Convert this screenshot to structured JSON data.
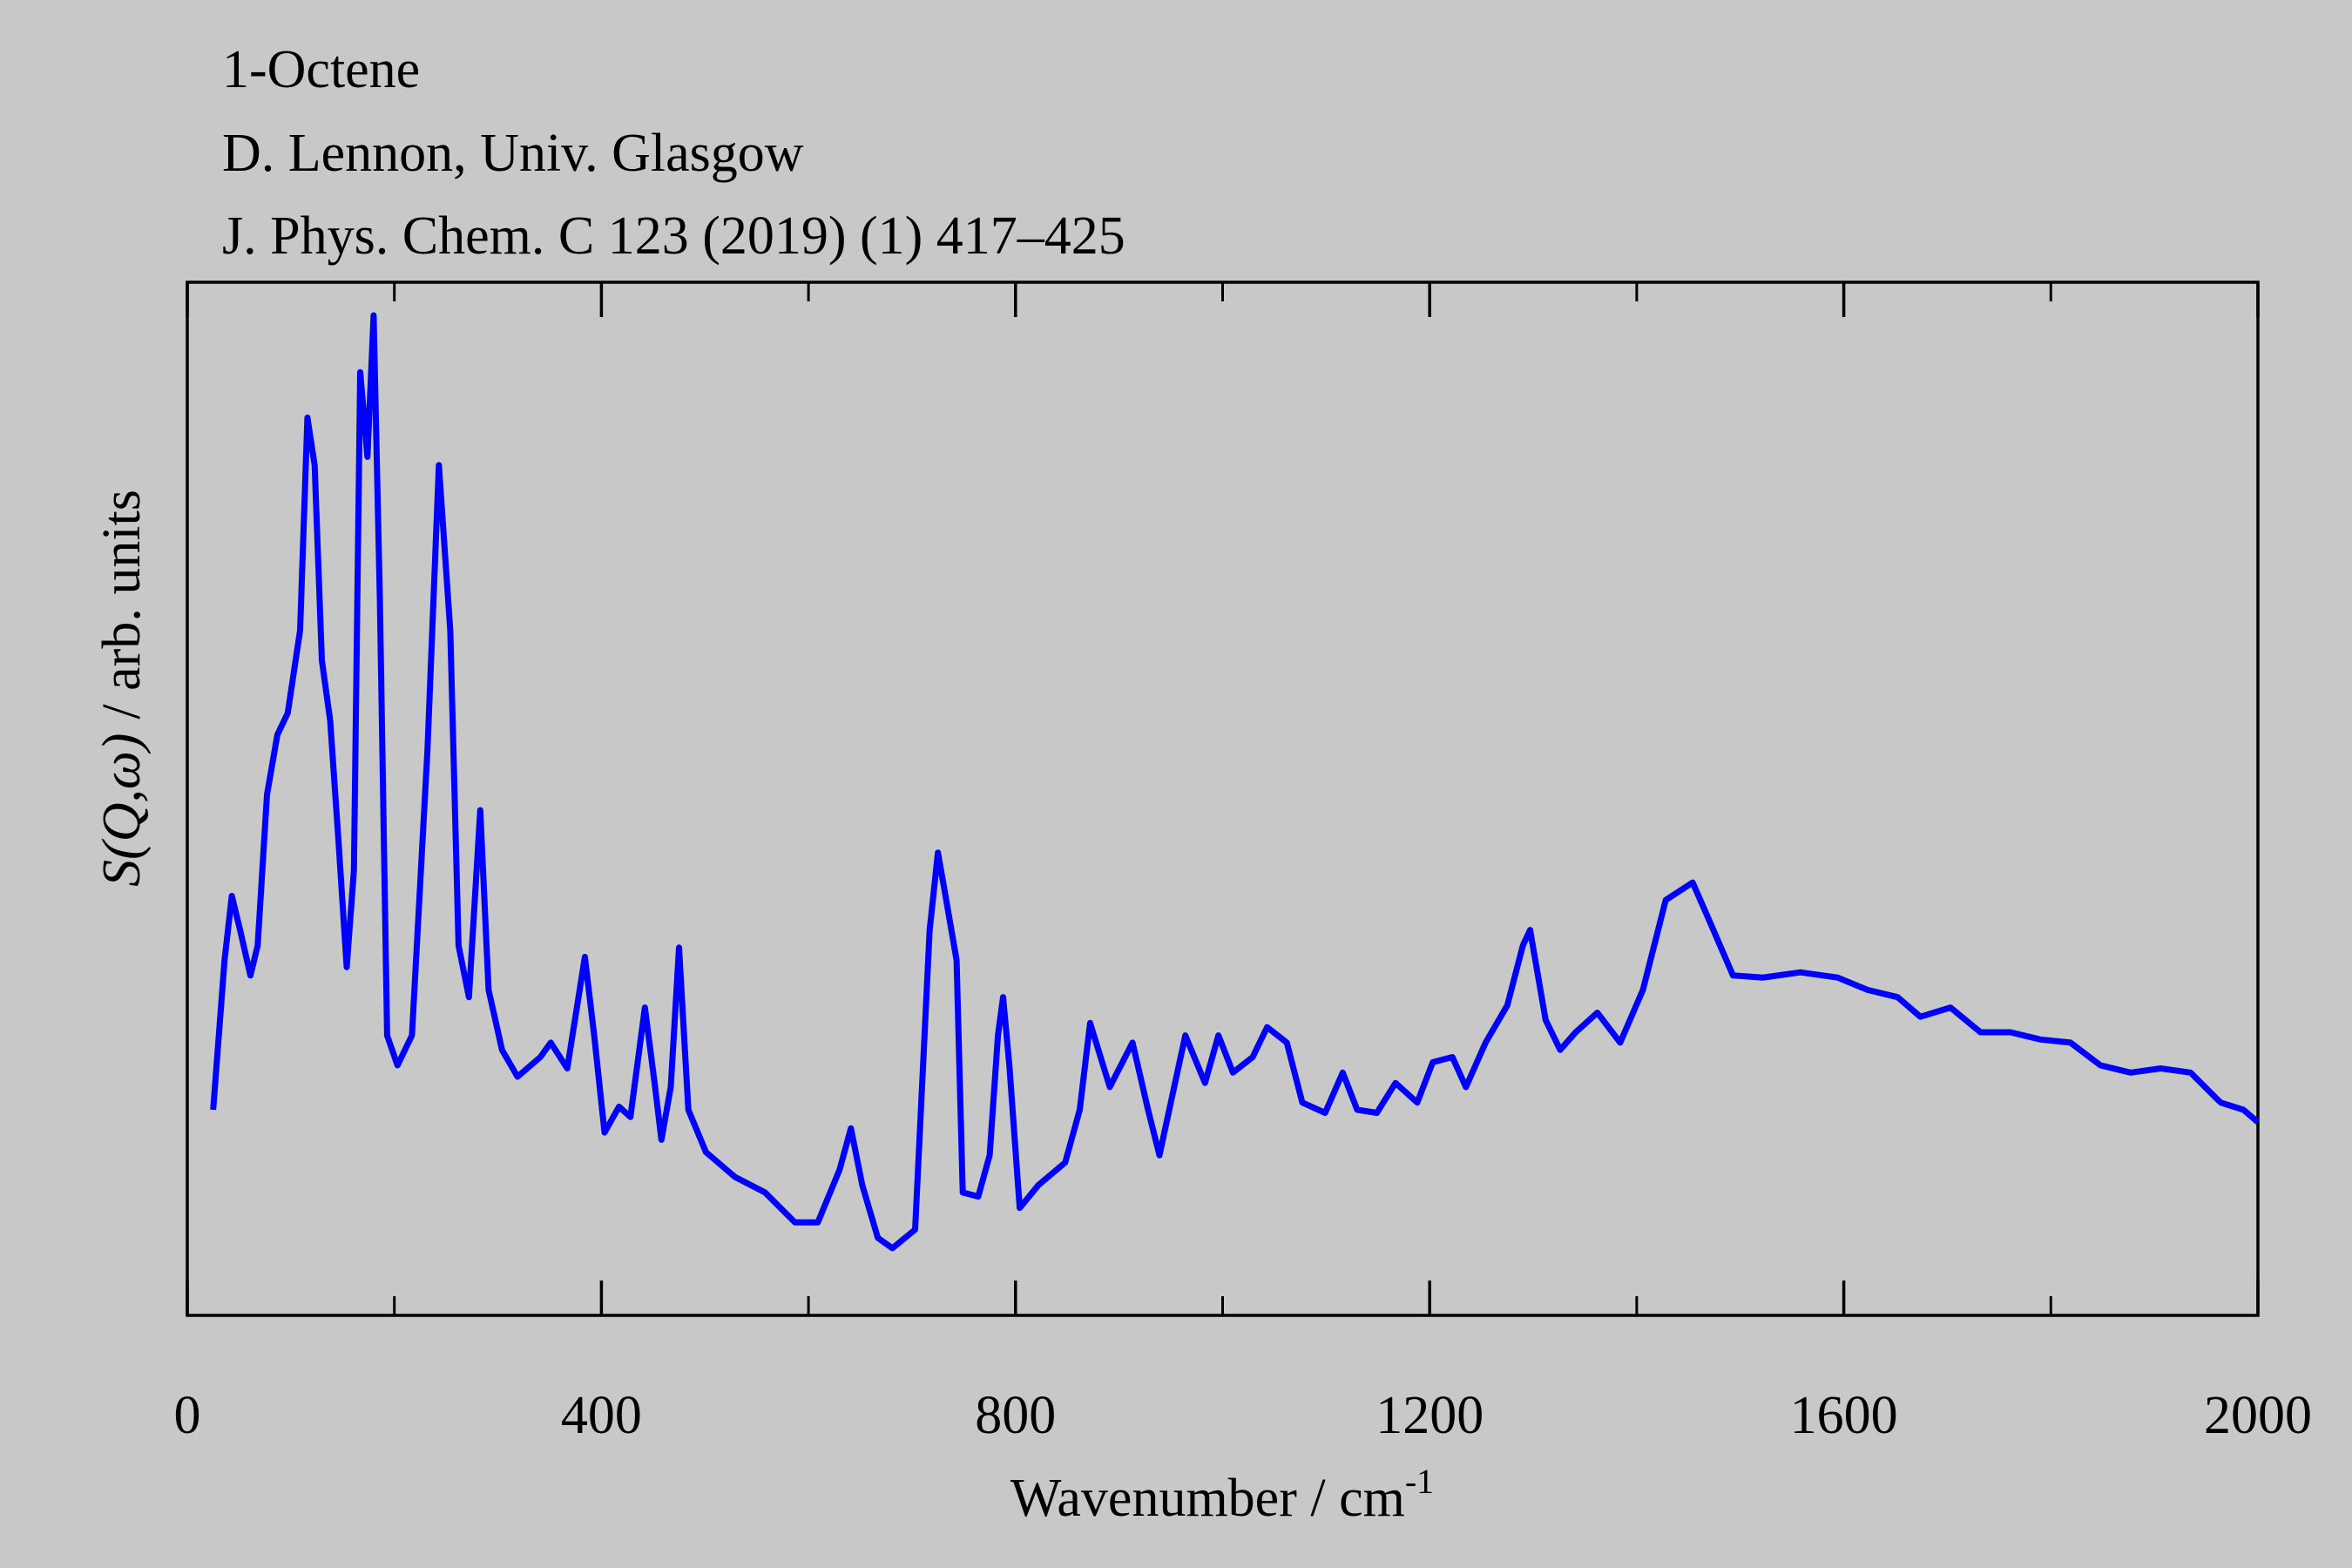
{
  "chart_data": {
    "type": "line",
    "title": "1-Octene",
    "subtitle": [
      "D. Lennon, Univ. Glasgow",
      "J. Phys. Chem. C 123 (2019) (1) 417–425"
    ],
    "xlabel": {
      "text": "Wavenumber / cm",
      "sup": "-1"
    },
    "ylabel": {
      "italic": "S(Q,ω)",
      "text": "/ arb. units"
    },
    "xlim": [
      0,
      2000
    ],
    "xticks": [
      0,
      400,
      800,
      1200,
      1600,
      2000
    ],
    "xminorticks": [
      200,
      600,
      1000,
      1400,
      1800
    ],
    "ylim": [
      0,
      100
    ],
    "yticks": [],
    "series": [
      {
        "color": "#0000ff",
        "x": [
          25,
          36,
          43,
          51,
          61,
          68,
          77,
          87,
          97,
          109,
          116,
          123,
          130,
          138,
          146,
          154,
          161,
          167,
          174,
          180,
          186,
          193,
          203,
          217,
          232,
          243,
          254,
          262,
          272,
          283,
          291,
          304,
          319,
          341,
          351,
          367,
          384,
          393,
          403,
          417,
          428,
          442,
          451,
          458,
          467,
          475,
          484,
          501,
          529,
          558,
          587,
          609,
          630,
          641,
          652,
          667,
          681,
          703,
          717,
          725,
          732,
          743,
          749,
          764,
          775,
          783,
          788,
          794,
          804,
          822,
          848,
          862,
          872,
          891,
          913,
          928,
          939,
          964,
          983,
          996,
          1010,
          1029,
          1043,
          1062,
          1077,
          1099,
          1116,
          1130,
          1149,
          1167,
          1188,
          1203,
          1222,
          1235,
          1254,
          1275,
          1290,
          1297,
          1312,
          1326,
          1341,
          1362,
          1384,
          1406,
          1428,
          1454,
          1471,
          1493,
          1522,
          1558,
          1594,
          1623,
          1652,
          1674,
          1703,
          1732,
          1761,
          1790,
          1819,
          1848,
          1877,
          1906,
          1935,
          1964,
          1986,
          2000
        ],
        "values": [
          19.9,
          34.4,
          40.6,
          37.3,
          32.9,
          35.8,
          50.4,
          56.2,
          58.3,
          66.3,
          86.9,
          82.3,
          63.4,
          57.6,
          46.0,
          33.7,
          43.1,
          91.3,
          83.1,
          96.8,
          69.2,
          27.1,
          24.2,
          27.1,
          54.7,
          82.3,
          66.3,
          35.8,
          30.8,
          48.9,
          31.5,
          25.7,
          23.1,
          25.0,
          26.4,
          23.9,
          34.7,
          27.1,
          17.7,
          20.2,
          19.2,
          29.8,
          22.8,
          17.0,
          22.1,
          35.6,
          19.9,
          15.8,
          13.4,
          11.9,
          9.0,
          9.0,
          14.1,
          18.1,
          12.6,
          7.5,
          6.5,
          8.3,
          37.3,
          44.8,
          40.8,
          34.4,
          11.9,
          11.5,
          15.5,
          27.1,
          30.8,
          24.2,
          10.4,
          12.6,
          14.8,
          19.9,
          28.3,
          22.1,
          26.4,
          19.9,
          15.5,
          27.1,
          22.5,
          27.1,
          23.5,
          25.0,
          27.9,
          26.4,
          20.6,
          19.6,
          23.5,
          19.9,
          19.6,
          22.5,
          20.6,
          24.5,
          25.0,
          22.1,
          26.4,
          30.0,
          35.8,
          37.3,
          28.6,
          25.7,
          27.4,
          29.3,
          26.4,
          31.5,
          40.2,
          41.9,
          38.0,
          32.9,
          32.7,
          33.2,
          32.7,
          31.5,
          30.8,
          28.9,
          29.8,
          27.4,
          27.4,
          26.7,
          26.4,
          24.2,
          23.5,
          23.9,
          23.5,
          20.6,
          19.9,
          18.7
        ]
      }
    ]
  }
}
